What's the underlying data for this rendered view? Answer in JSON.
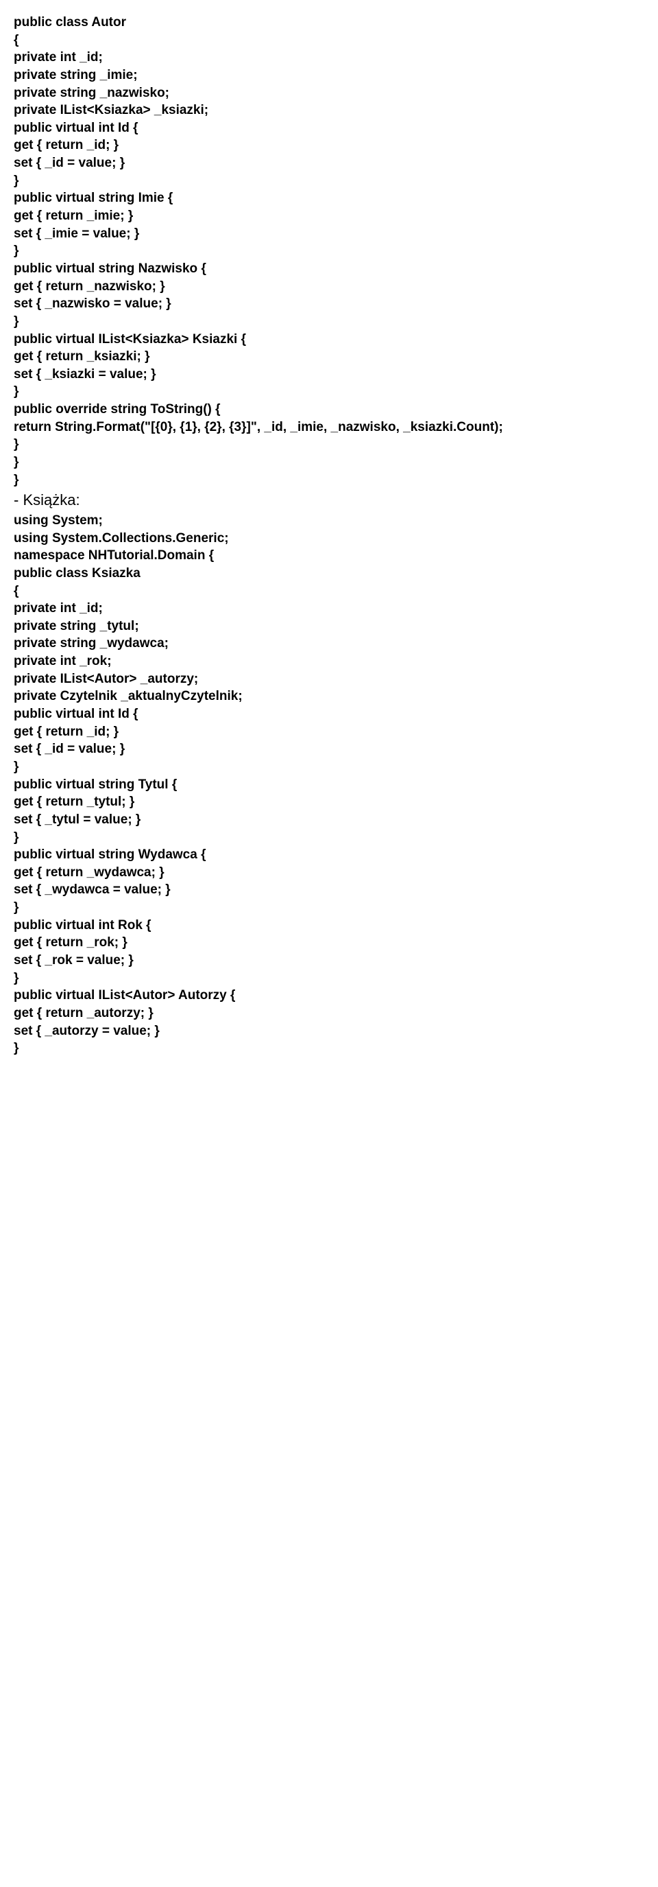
{
  "lines": [
    {
      "type": "code",
      "text": "public class Autor"
    },
    {
      "type": "code",
      "text": "{"
    },
    {
      "type": "code",
      "text": "private int _id;"
    },
    {
      "type": "code",
      "text": "private string _imie;"
    },
    {
      "type": "code",
      "text": "private string _nazwisko;"
    },
    {
      "type": "code",
      "text": "private IList<Ksiazka> _ksiazki;"
    },
    {
      "type": "code",
      "text": "public virtual int Id {"
    },
    {
      "type": "code",
      "text": "get { return _id; }"
    },
    {
      "type": "code",
      "text": "set { _id = value; }"
    },
    {
      "type": "code",
      "text": "}"
    },
    {
      "type": "code",
      "text": "public virtual string Imie {"
    },
    {
      "type": "code",
      "text": "get { return _imie; }"
    },
    {
      "type": "code",
      "text": "set { _imie = value; }"
    },
    {
      "type": "code",
      "text": "}"
    },
    {
      "type": "code",
      "text": "public virtual string Nazwisko {"
    },
    {
      "type": "code",
      "text": "get { return _nazwisko; }"
    },
    {
      "type": "code",
      "text": "set { _nazwisko = value; }"
    },
    {
      "type": "code",
      "text": "}"
    },
    {
      "type": "code",
      "text": "public virtual IList<Ksiazka> Ksiazki {"
    },
    {
      "type": "code",
      "text": "get { return _ksiazki; }"
    },
    {
      "type": "code",
      "text": "set { _ksiazki = value; }"
    },
    {
      "type": "code",
      "text": "}"
    },
    {
      "type": "code",
      "text": "public override string ToString() {"
    },
    {
      "type": "code",
      "text": "return String.Format(\"[{0}, {1}, {2}, {3}]\", _id, _imie, _nazwisko, _ksiazki.Count);"
    },
    {
      "type": "code",
      "text": "}"
    },
    {
      "type": "code",
      "text": "}"
    },
    {
      "type": "code",
      "text": "}"
    },
    {
      "type": "plain",
      "text": "- Książka:"
    },
    {
      "type": "code",
      "text": "using System;"
    },
    {
      "type": "code",
      "text": "using System.Collections.Generic;"
    },
    {
      "type": "code",
      "text": "namespace NHTutorial.Domain {"
    },
    {
      "type": "code",
      "text": "public class Ksiazka"
    },
    {
      "type": "code",
      "text": "{"
    },
    {
      "type": "code",
      "text": "private int _id;"
    },
    {
      "type": "code",
      "text": "private string _tytul;"
    },
    {
      "type": "code",
      "text": "private string _wydawca;"
    },
    {
      "type": "code",
      "text": "private int _rok;"
    },
    {
      "type": "code",
      "text": "private IList<Autor> _autorzy;"
    },
    {
      "type": "code",
      "text": "private Czytelnik _aktualnyCzytelnik;"
    },
    {
      "type": "code",
      "text": "public virtual int Id {"
    },
    {
      "type": "code",
      "text": "get { return _id; }"
    },
    {
      "type": "code",
      "text": "set { _id = value; }"
    },
    {
      "type": "code",
      "text": "}"
    },
    {
      "type": "code",
      "text": "public virtual string Tytul {"
    },
    {
      "type": "code",
      "text": "get { return _tytul; }"
    },
    {
      "type": "code",
      "text": "set { _tytul = value; }"
    },
    {
      "type": "code",
      "text": "}"
    },
    {
      "type": "code",
      "text": "public virtual string Wydawca {"
    },
    {
      "type": "code",
      "text": "get { return _wydawca; }"
    },
    {
      "type": "code",
      "text": "set { _wydawca = value; }"
    },
    {
      "type": "code",
      "text": "}"
    },
    {
      "type": "code",
      "text": "public virtual int Rok {"
    },
    {
      "type": "code",
      "text": "get { return _rok; }"
    },
    {
      "type": "code",
      "text": "set { _rok = value; }"
    },
    {
      "type": "code",
      "text": "}"
    },
    {
      "type": "code",
      "text": "public virtual IList<Autor> Autorzy {"
    },
    {
      "type": "code",
      "text": "get { return _autorzy; }"
    },
    {
      "type": "code",
      "text": "set { _autorzy = value; }"
    },
    {
      "type": "code",
      "text": "}"
    }
  ]
}
